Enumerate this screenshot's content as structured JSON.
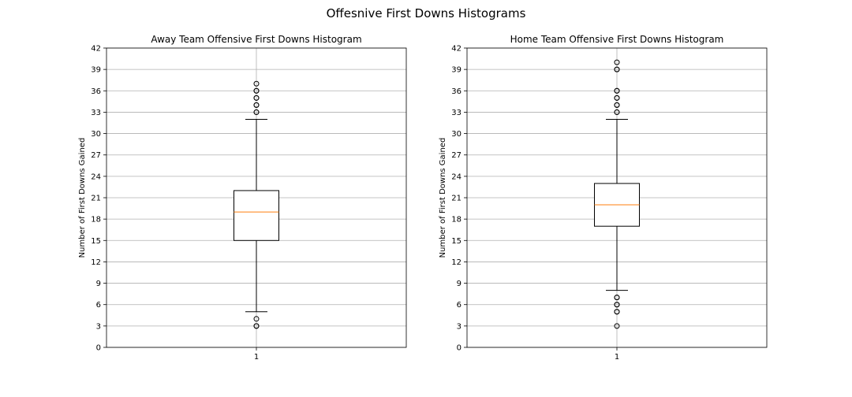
{
  "figure": {
    "title": "Offesnive First Downs Histograms"
  },
  "chart_data": [
    {
      "type": "box",
      "title": "Away Team Offensive First Downs Histogram",
      "xlabel": "",
      "ylabel": "Number of First Downs Gained",
      "categories": [
        "1"
      ],
      "ylim": [
        0,
        42
      ],
      "yticks": [
        0,
        3,
        6,
        9,
        12,
        15,
        18,
        21,
        24,
        27,
        30,
        33,
        36,
        39,
        42
      ],
      "grid": true,
      "box": {
        "whisker_low": 5,
        "q1": 15,
        "median": 19,
        "q3": 22,
        "whisker_high": 32,
        "outliers": [
          3,
          3,
          4,
          33,
          33,
          34,
          34,
          35,
          35,
          36,
          36,
          37
        ]
      },
      "colors": {
        "median": "#ff7f0e",
        "box": "#000000",
        "grid": "#b0b0b0"
      }
    },
    {
      "type": "box",
      "title": "Home Team Offensive First Downs Histogram",
      "xlabel": "",
      "ylabel": "Number of First Downs Gained",
      "categories": [
        "1"
      ],
      "ylim": [
        0,
        42
      ],
      "yticks": [
        0,
        3,
        6,
        9,
        12,
        15,
        18,
        21,
        24,
        27,
        30,
        33,
        36,
        39,
        42
      ],
      "grid": true,
      "box": {
        "whisker_low": 8,
        "q1": 17,
        "median": 20,
        "q3": 23,
        "whisker_high": 32,
        "outliers": [
          3,
          5,
          5,
          6,
          6,
          7,
          7,
          33,
          33,
          34,
          34,
          35,
          35,
          36,
          36,
          39,
          39,
          40
        ]
      },
      "colors": {
        "median": "#ff7f0e",
        "box": "#000000",
        "grid": "#b0b0b0"
      }
    }
  ]
}
